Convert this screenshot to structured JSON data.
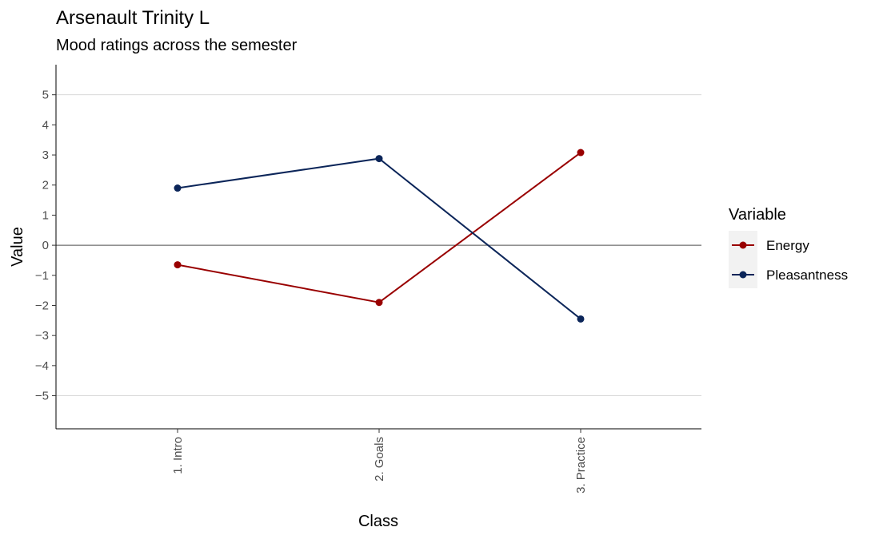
{
  "chart_data": {
    "type": "line",
    "title": "Arsenault Trinity L",
    "subtitle": "Mood ratings across the semester",
    "xlabel": "Class",
    "ylabel": "Value",
    "categories": [
      "1. Intro",
      "2. Goals",
      "3. Practice"
    ],
    "ylim": [
      -6.1,
      6
    ],
    "yticks": [
      5,
      4,
      3,
      2,
      1,
      0,
      -1,
      -2,
      -3,
      -4,
      -5
    ],
    "ytick_labels": [
      "5",
      "4",
      "3",
      "2",
      "1",
      "0",
      "−1",
      "−2",
      "−3",
      "−4",
      "−5"
    ],
    "gridlines_y": [
      5,
      -5
    ],
    "reference_line_y": 0,
    "legend": {
      "title": "Variable",
      "position": "right"
    },
    "series": [
      {
        "name": "Energy",
        "color": "#990000",
        "values": [
          -0.65,
          -1.9,
          3.08
        ]
      },
      {
        "name": "Pleasantness",
        "color": "#0b2559",
        "values": [
          1.9,
          2.88,
          -2.45
        ]
      }
    ]
  }
}
